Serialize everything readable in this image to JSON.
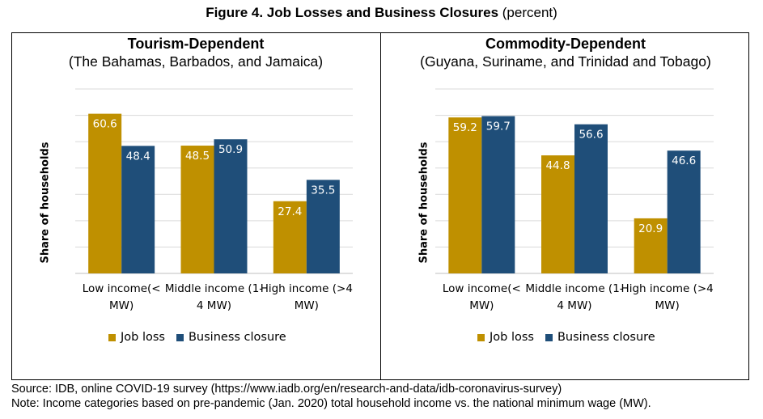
{
  "figure": {
    "title_bold": "Figure 4. Job Losses and Business Closures",
    "title_rest": " (percent)"
  },
  "colors": {
    "job_loss": "#BF9000",
    "business_closure": "#1F4E79",
    "grid": "#D9D9D9"
  },
  "chart_data": [
    {
      "type": "bar",
      "title": "Tourism-Dependent",
      "subtitle": "(The Bahamas, Barbados, and Jamaica)",
      "ylabel": "Share of households",
      "xlabel": "",
      "ylim": [
        0,
        70
      ],
      "grid": true,
      "legend_position": "bottom",
      "categories": [
        [
          "Low income(<",
          "MW)"
        ],
        [
          "Middle income (1-",
          "4 MW)"
        ],
        [
          "High income (>4",
          "MW)"
        ]
      ],
      "series": [
        {
          "name": "Job loss",
          "values": [
            60.6,
            48.5,
            27.4
          ],
          "labels": [
            "60.6",
            "48.5",
            "27.4"
          ]
        },
        {
          "name": "Business closure",
          "values": [
            48.4,
            50.9,
            35.5
          ],
          "labels": [
            "48.4",
            "50.9",
            "35.5"
          ]
        }
      ]
    },
    {
      "type": "bar",
      "title": "Commodity-Dependent",
      "subtitle": "(Guyana, Suriname, and Trinidad and Tobago)",
      "ylabel": "Share of households",
      "xlabel": "",
      "ylim": [
        0,
        70
      ],
      "grid": true,
      "legend_position": "bottom",
      "categories": [
        [
          "Low income(<",
          "MW)"
        ],
        [
          "Middle income (1-",
          "4 MW)"
        ],
        [
          "High income (>4",
          "MW)"
        ]
      ],
      "series": [
        {
          "name": "Job loss",
          "values": [
            59.2,
            44.8,
            20.9
          ],
          "labels": [
            "59.2",
            "44.8",
            "20.9"
          ]
        },
        {
          "name": "Business closure",
          "values": [
            59.7,
            56.6,
            46.6
          ],
          "labels": [
            "59.7",
            "56.6",
            "46.6"
          ]
        }
      ]
    }
  ],
  "notes": {
    "source": "Source: IDB, online COVID-19 survey (https://www.iadb.org/en/research-and-data/idb-coronavirus-survey)",
    "note": "Note: Income categories based on pre-pandemic (Jan. 2020) total household income vs. the national minimum wage (MW)."
  }
}
